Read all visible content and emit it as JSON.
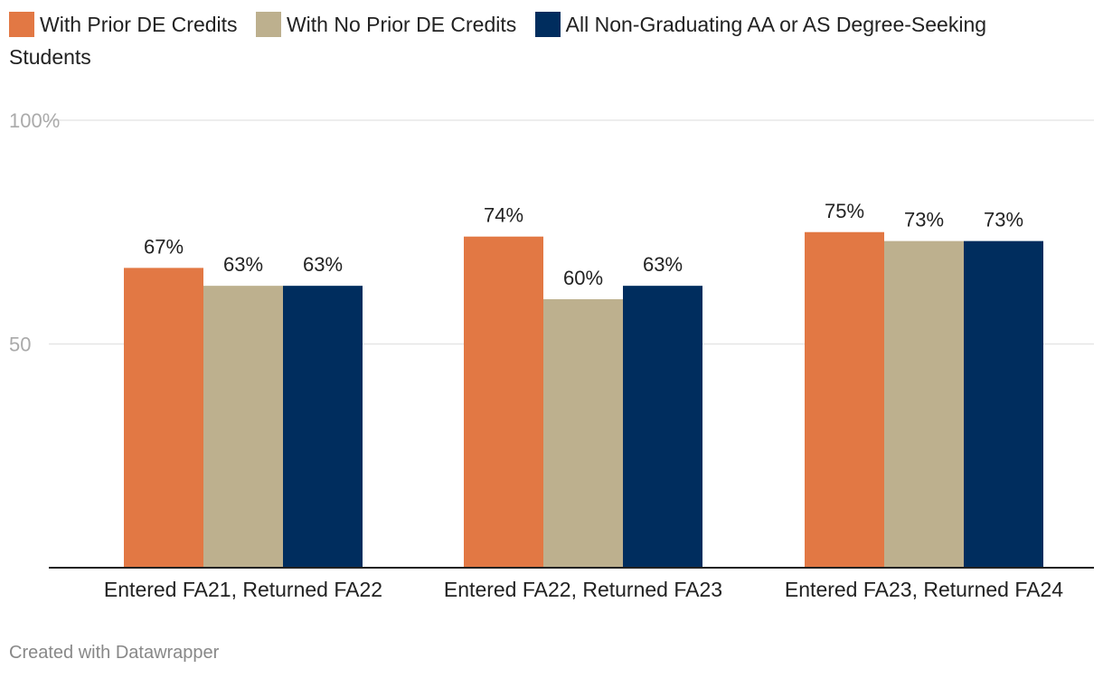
{
  "legend": [
    {
      "label": "With Prior DE Credits",
      "color": "#e27844"
    },
    {
      "label": "With No Prior DE Credits",
      "color": "#bdb08e"
    },
    {
      "label": "All Non-Graduating AA or AS Degree-Seeking Students",
      "color": "#002d5e"
    }
  ],
  "footer": "Created with Datawrapper",
  "chart_data": {
    "type": "bar",
    "title": "",
    "xlabel": "",
    "ylabel": "",
    "ylim": [
      0,
      100
    ],
    "y_ticks": [
      {
        "value": 50,
        "label": "50"
      },
      {
        "value": 100,
        "label": "100%"
      }
    ],
    "grid": true,
    "legend_position": "top",
    "categories": [
      "Entered FA21, Returned FA22",
      "Entered FA22, Returned FA23",
      "Entered FA23, Returned FA24"
    ],
    "series": [
      {
        "name": "With Prior DE Credits",
        "color": "#e27844",
        "values": [
          67,
          74,
          75
        ],
        "labels": [
          "67%",
          "74%",
          "75%"
        ]
      },
      {
        "name": "With No Prior DE Credits",
        "color": "#bdb08e",
        "values": [
          63,
          60,
          73
        ],
        "labels": [
          "63%",
          "60%",
          "73%"
        ]
      },
      {
        "name": "All Non-Graduating AA or AS Degree-Seeking Students",
        "color": "#002d5e",
        "values": [
          63,
          63,
          73
        ],
        "labels": [
          "63%",
          "63%",
          "73%"
        ]
      }
    ]
  }
}
